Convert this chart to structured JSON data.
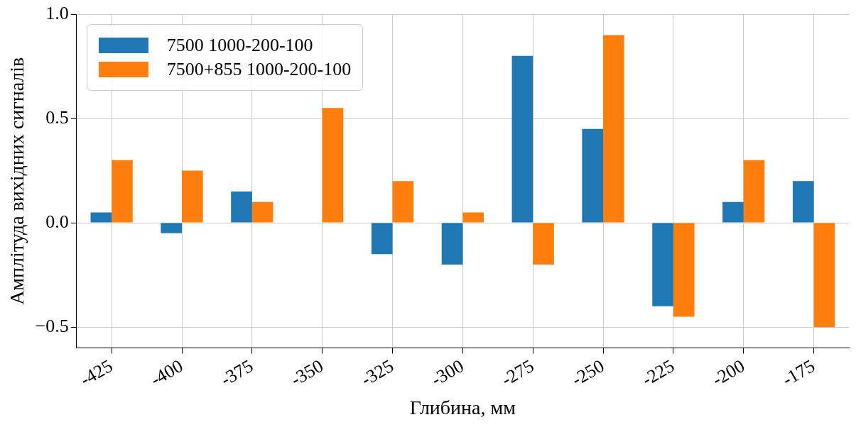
{
  "chart_data": {
    "type": "bar",
    "xlabel": "Глибина, мм",
    "ylabel": "Амплітуда вихідних сигналів",
    "categories": [
      "-425",
      "-400",
      "-375",
      "-350",
      "-325",
      "-300",
      "-275",
      "-250",
      "-225",
      "-200",
      "-175"
    ],
    "series": [
      {
        "name": "7500 1000-200-100",
        "color": "#1f77b4",
        "values": [
          0.05,
          -0.05,
          0.15,
          0,
          -0.15,
          -0.2,
          0.8,
          0.45,
          -0.4,
          0.1,
          0.2
        ]
      },
      {
        "name": "7500+855 1000-200-100",
        "color": "#ff7f0e",
        "values": [
          0.3,
          0.25,
          0.1,
          0.55,
          0.2,
          0.05,
          -0.2,
          0.9,
          -0.45,
          0.3,
          -0.5
        ]
      }
    ],
    "ylim": [
      -0.6,
      1.0
    ],
    "yticks": [
      {
        "value": -0.5,
        "label": "−0.5"
      },
      {
        "value": 0,
        "label": "0.0"
      },
      {
        "value": 0.5,
        "label": "0.5"
      },
      {
        "value": 1.0,
        "label": "1.0"
      }
    ],
    "grid": true,
    "legend": "top left"
  }
}
